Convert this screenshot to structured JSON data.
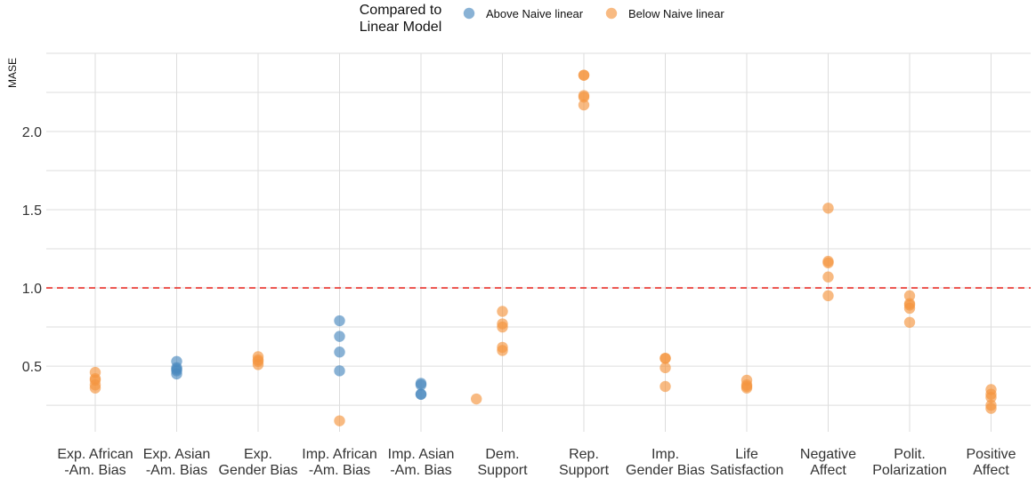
{
  "chart_data": {
    "type": "scatter",
    "xlabel": "",
    "ylabel": "MASE",
    "ylim": [
      0.08,
      2.5
    ],
    "yticks": [
      "0.5",
      "1.0",
      "1.5",
      "2.0"
    ],
    "grid": true,
    "reference_line": {
      "y": 1.0,
      "style": "dashed",
      "color": "#e8302a"
    },
    "legend": {
      "placement": "top-center",
      "title_lines": [
        "Compared to",
        "Linear Model"
      ],
      "entries": [
        {
          "label": "Above Naive linear",
          "color": "#4a88bf"
        },
        {
          "label": "Below Naive linear",
          "color": "#f5953f"
        }
      ]
    },
    "categories": [
      {
        "lines": [
          "Exp. African",
          "-Am. Bias"
        ]
      },
      {
        "lines": [
          "Exp. Asian",
          "-Am. Bias"
        ]
      },
      {
        "lines": [
          "Exp.",
          "Gender Bias"
        ]
      },
      {
        "lines": [
          "Imp. African",
          "-Am. Bias"
        ]
      },
      {
        "lines": [
          "Imp. Asian",
          "-Am. Bias"
        ]
      },
      {
        "lines": [
          "Dem.",
          "Support"
        ]
      },
      {
        "lines": [
          "Rep.",
          "Support"
        ]
      },
      {
        "lines": [
          "Imp.",
          "Gender Bias"
        ]
      },
      {
        "lines": [
          "Life",
          "Satisfaction"
        ]
      },
      {
        "lines": [
          "Negative",
          "Affect"
        ]
      },
      {
        "lines": [
          "Polit.",
          "Polarization"
        ]
      },
      {
        "lines": [
          "Positive",
          "Affect"
        ]
      }
    ],
    "series": [
      {
        "color": "#4a88bf",
        "points": [
          {
            "x": 1,
            "y": 0.53
          },
          {
            "x": 1,
            "y": 0.49
          },
          {
            "x": 1,
            "y": 0.48
          },
          {
            "x": 1,
            "y": 0.47
          },
          {
            "x": 1,
            "y": 0.45
          },
          {
            "x": 3,
            "y": 0.79
          },
          {
            "x": 3,
            "y": 0.69
          },
          {
            "x": 3,
            "y": 0.59
          },
          {
            "x": 3,
            "y": 0.47
          },
          {
            "x": 4,
            "y": 0.39
          },
          {
            "x": 4,
            "y": 0.38
          },
          {
            "x": 4,
            "y": 0.32
          },
          {
            "x": 4,
            "y": 0.32
          }
        ]
      },
      {
        "color": "#f5953f",
        "points": [
          {
            "x": 0,
            "y": 0.46
          },
          {
            "x": 0,
            "y": 0.42
          },
          {
            "x": 0,
            "y": 0.41
          },
          {
            "x": 0,
            "y": 0.38
          },
          {
            "x": 0,
            "y": 0.36
          },
          {
            "x": 2,
            "y": 0.56
          },
          {
            "x": 2,
            "y": 0.54
          },
          {
            "x": 2,
            "y": 0.53
          },
          {
            "x": 2,
            "y": 0.51
          },
          {
            "x": 3,
            "y": 0.15
          },
          {
            "x": 4.68,
            "y": 0.29
          },
          {
            "x": 5,
            "y": 0.85
          },
          {
            "x": 5,
            "y": 0.77
          },
          {
            "x": 5,
            "y": 0.75
          },
          {
            "x": 5,
            "y": 0.62
          },
          {
            "x": 5,
            "y": 0.6
          },
          {
            "x": 6,
            "y": 2.36
          },
          {
            "x": 6,
            "y": 2.36
          },
          {
            "x": 6,
            "y": 2.23
          },
          {
            "x": 6,
            "y": 2.22
          },
          {
            "x": 6,
            "y": 2.17
          },
          {
            "x": 7,
            "y": 0.55
          },
          {
            "x": 7,
            "y": 0.55
          },
          {
            "x": 7,
            "y": 0.49
          },
          {
            "x": 7,
            "y": 0.37
          },
          {
            "x": 8,
            "y": 0.41
          },
          {
            "x": 8,
            "y": 0.38
          },
          {
            "x": 8,
            "y": 0.37
          },
          {
            "x": 8,
            "y": 0.36
          },
          {
            "x": 9,
            "y": 1.51
          },
          {
            "x": 9,
            "y": 1.17
          },
          {
            "x": 9,
            "y": 1.16
          },
          {
            "x": 9,
            "y": 1.07
          },
          {
            "x": 9,
            "y": 0.95
          },
          {
            "x": 10,
            "y": 0.95
          },
          {
            "x": 10,
            "y": 0.9
          },
          {
            "x": 10,
            "y": 0.89
          },
          {
            "x": 10,
            "y": 0.87
          },
          {
            "x": 10,
            "y": 0.78
          },
          {
            "x": 11,
            "y": 0.35
          },
          {
            "x": 11,
            "y": 0.32
          },
          {
            "x": 11,
            "y": 0.3
          },
          {
            "x": 11,
            "y": 0.25
          },
          {
            "x": 11,
            "y": 0.23
          }
        ]
      }
    ]
  }
}
